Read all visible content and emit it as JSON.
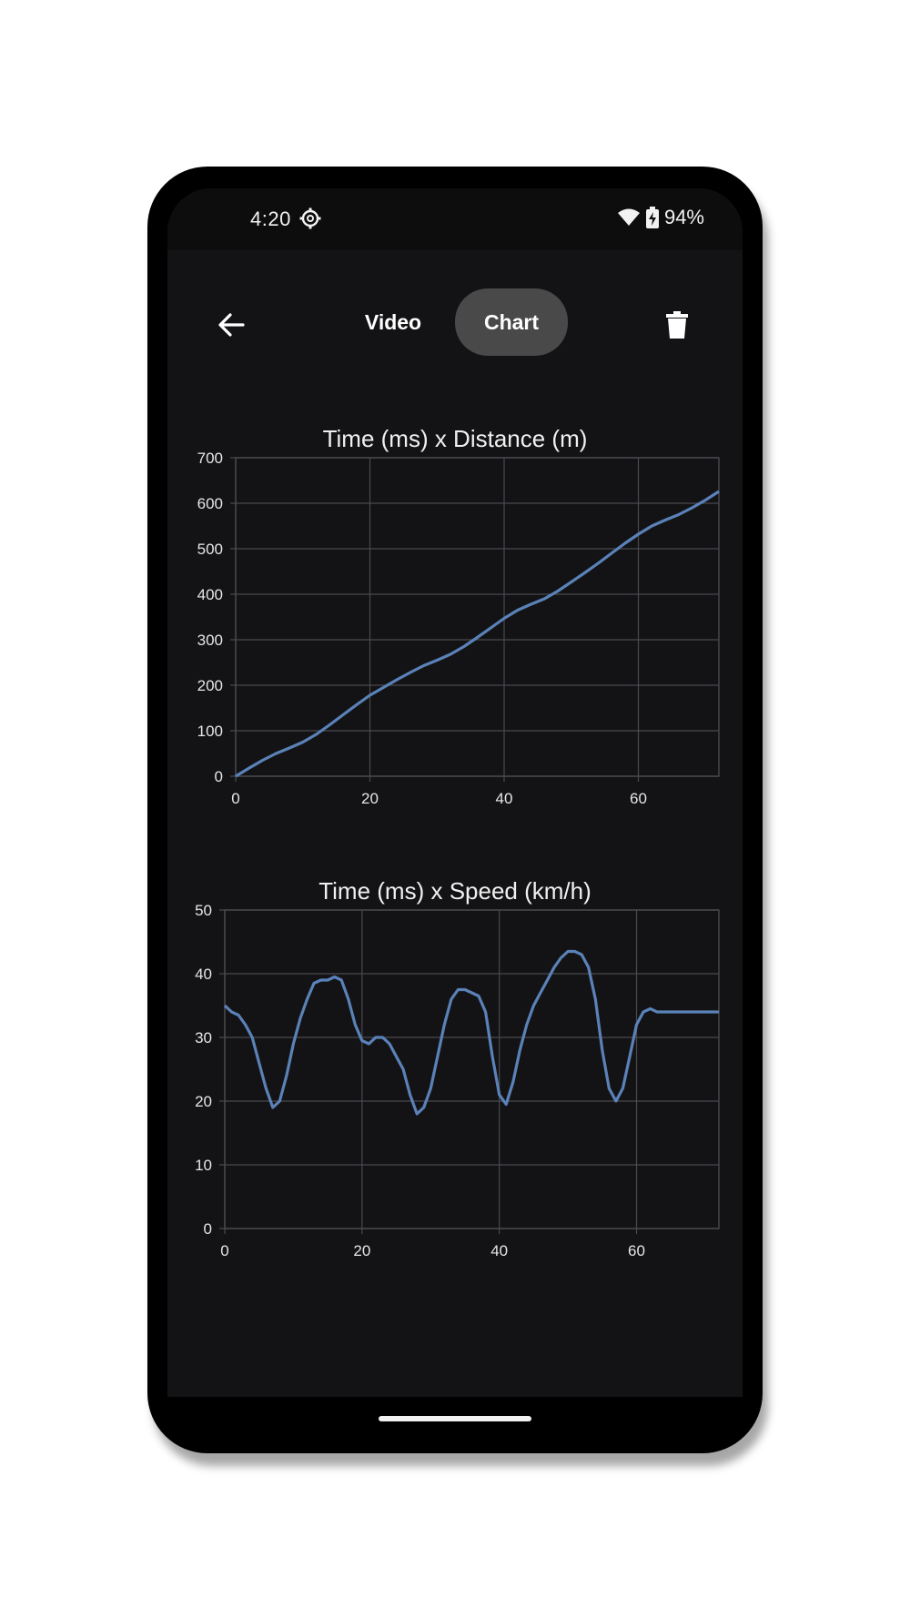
{
  "status_bar": {
    "time": "4:20",
    "battery": "94%",
    "icons": [
      "settings-gear-icon",
      "wifi-icon",
      "battery-charging-icon"
    ]
  },
  "toolbar": {
    "back_icon": "arrow-left-icon",
    "tabs": [
      {
        "label": "Video",
        "selected": false
      },
      {
        "label": "Chart",
        "selected": true
      }
    ],
    "delete_icon": "trash-icon"
  },
  "colors": {
    "background": "#131315",
    "line": "#5a82b8",
    "grid": "#4a4a4f",
    "tab_selected": "#494949"
  },
  "chart_data": [
    {
      "type": "line",
      "title": "Time (ms) x Distance (m)",
      "xlim": [
        0,
        72
      ],
      "ylim": [
        0,
        700
      ],
      "x_ticks": [
        0,
        20,
        40,
        60
      ],
      "y_ticks": [
        0,
        100,
        200,
        300,
        400,
        500,
        600,
        700
      ],
      "x_tick_labels": [
        "0",
        "20",
        "40",
        "60"
      ],
      "y_tick_labels": [
        "0",
        "100",
        "200",
        "300",
        "400",
        "500",
        "600",
        "700"
      ],
      "grid": true,
      "series": [
        {
          "x": [
            0,
            2,
            4,
            6,
            8,
            10,
            12,
            14,
            16,
            18,
            20,
            22,
            24,
            26,
            28,
            30,
            32,
            34,
            36,
            38,
            40,
            42,
            44,
            46,
            48,
            50,
            52,
            54,
            56,
            58,
            60,
            62,
            64,
            66,
            68,
            70,
            72
          ],
          "values": [
            0,
            18,
            35,
            50,
            62,
            75,
            92,
            113,
            135,
            157,
            178,
            195,
            212,
            228,
            243,
            255,
            268,
            285,
            305,
            326,
            347,
            365,
            378,
            390,
            407,
            427,
            447,
            468,
            490,
            512,
            532,
            550,
            563,
            575,
            590,
            607,
            626
          ]
        }
      ]
    },
    {
      "type": "line",
      "title": "Time (ms) x Speed (km/h)",
      "xlim": [
        0,
        72
      ],
      "ylim": [
        0,
        50
      ],
      "x_ticks": [
        0,
        20,
        40,
        60
      ],
      "y_ticks": [
        0,
        10,
        20,
        30,
        40,
        50
      ],
      "x_tick_labels": [
        "0",
        "20",
        "40",
        "60"
      ],
      "y_tick_labels": [
        "0",
        "10",
        "20",
        "30",
        "40",
        "50"
      ],
      "grid": true,
      "series": [
        {
          "x": [
            0,
            1,
            2,
            3,
            4,
            5,
            6,
            7,
            8,
            9,
            10,
            11,
            12,
            13,
            14,
            15,
            16,
            17,
            18,
            19,
            20,
            21,
            22,
            23,
            24,
            25,
            26,
            27,
            28,
            29,
            30,
            31,
            32,
            33,
            34,
            35,
            36,
            37,
            38,
            39,
            40,
            41,
            42,
            43,
            44,
            45,
            46,
            47,
            48,
            49,
            50,
            51,
            52,
            53,
            54,
            55,
            56,
            57,
            58,
            59,
            60,
            61,
            62,
            63,
            64,
            65,
            66,
            67,
            68,
            69,
            70,
            71,
            72
          ],
          "values": [
            35,
            34,
            33.5,
            32,
            30,
            26,
            22,
            19,
            20,
            24,
            29,
            33,
            36,
            38.5,
            39,
            39,
            39.5,
            39,
            36,
            32,
            29.5,
            29,
            30,
            30,
            29,
            27,
            25,
            21,
            18,
            19,
            22,
            27,
            32,
            36,
            37.5,
            37.5,
            37,
            36.5,
            34,
            27,
            21,
            19.5,
            23,
            28,
            32,
            35,
            37,
            39,
            41,
            42.5,
            43.5,
            43.5,
            43,
            41,
            36,
            28,
            22,
            20,
            22,
            27,
            32,
            34,
            34.5,
            34,
            34,
            34,
            34,
            34,
            34,
            34,
            34,
            34,
            34
          ]
        }
      ]
    }
  ]
}
